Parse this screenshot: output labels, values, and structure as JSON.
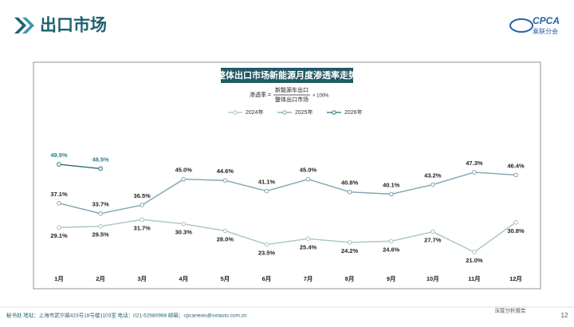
{
  "header": {
    "title": "出口市场",
    "logo": "CPCA",
    "logo_sub": "乘联分会"
  },
  "chart_data": {
    "type": "line",
    "title": "整体出口市场新能源月度渗透率走势",
    "formula": {
      "lhs": "渗透率 =",
      "numerator": "新能源车出口",
      "denominator": "整体出口市场",
      "factor": "× 100%"
    },
    "categories": [
      "1月",
      "2月",
      "3月",
      "4月",
      "5月",
      "6月",
      "7月",
      "8月",
      "9月",
      "10月",
      "11月",
      "12月"
    ],
    "series": [
      {
        "name": "2024年",
        "color": "#a9c3c8",
        "label_color": "#222222",
        "label_pos": "below",
        "values": [
          29.1,
          29.5,
          31.7,
          30.3,
          28.0,
          23.5,
          25.4,
          24.2,
          24.6,
          27.7,
          21.0,
          30.8
        ],
        "value_labels": [
          "29.1%",
          "29.5%",
          "31.7%",
          "30.3%",
          "28.0%",
          "23.5%",
          "25.4%",
          "24.2%",
          "24.6%",
          "27.7%",
          "21.0%",
          "30.8%"
        ]
      },
      {
        "name": "2025年",
        "color": "#7fa5b0",
        "label_color": "#222222",
        "label_pos": "above",
        "values": [
          37.1,
          33.7,
          36.5,
          45.0,
          44.6,
          41.1,
          45.0,
          40.8,
          40.1,
          43.2,
          47.3,
          46.4
        ],
        "value_labels": [
          "37.1%",
          "33.7%",
          "36.5%",
          "45.0%",
          "44.6%",
          "41.1%",
          "45.0%",
          "40.8%",
          "40.1%",
          "43.2%",
          "47.3%",
          "46.4%"
        ]
      },
      {
        "name": "2026年",
        "color": "#2e6a79",
        "label_color": "#2d8090",
        "label_pos": "above",
        "values": [
          49.9,
          48.5,
          null,
          null,
          null,
          null,
          null,
          null,
          null,
          null,
          null,
          null
        ],
        "value_labels": [
          "49.9%",
          "48.5%",
          null,
          null,
          null,
          null,
          null,
          null,
          null,
          null,
          null,
          null
        ]
      }
    ]
  },
  "footer": {
    "contact": "秘书处  地址：上海市武宁路423号18号楼1103室  电话：021-52680968  邮箱：cpcanews@sxtauto.com.cn",
    "report": "深度分析报告",
    "page": "12"
  }
}
